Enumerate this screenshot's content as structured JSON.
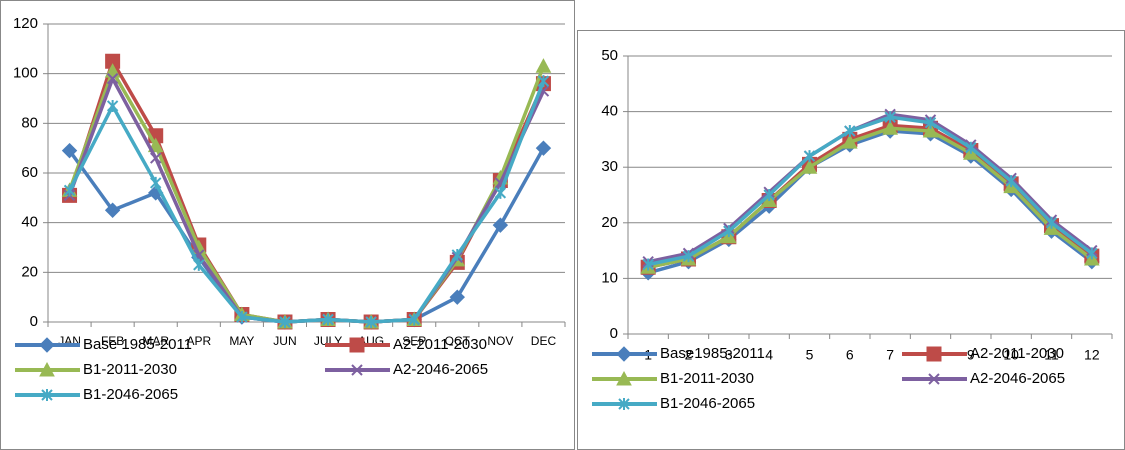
{
  "chart_data": [
    {
      "type": "line",
      "categories": [
        "JAN",
        "FEB",
        "MAR",
        "APR",
        "MAY",
        "JUN",
        "JULY",
        "AUG",
        "SEP",
        "OCT",
        "NOV",
        "DEC"
      ],
      "ylim": [
        0,
        120
      ],
      "yticks": [
        0,
        20,
        40,
        60,
        80,
        100,
        120
      ],
      "grid": true,
      "series": [
        {
          "name": "Base 1985-2011",
          "color": "#4a7ebb",
          "values": [
            69,
            45,
            52,
            26,
            2,
            0,
            1,
            0,
            1,
            10,
            39,
            70
          ]
        },
        {
          "name": "A2-2011-2030",
          "color": "#be4b48",
          "values": [
            51,
            105,
            75,
            31,
            3,
            0,
            1,
            0,
            1,
            24,
            57,
            96
          ]
        },
        {
          "name": "B1-2011-2030",
          "color": "#98b954",
          "values": [
            53,
            101,
            71,
            30,
            3,
            0,
            1,
            0,
            1,
            25,
            58,
            103
          ]
        },
        {
          "name": "A2-2046-2065",
          "color": "#7d60a0",
          "values": [
            51,
            98,
            66,
            27,
            2,
            0,
            1,
            0,
            1,
            26,
            56,
            93
          ]
        },
        {
          "name": "B1-2046-2065",
          "color": "#46aac5",
          "values": [
            53,
            87,
            56,
            23,
            2,
            0,
            1,
            0,
            1,
            27,
            52,
            97
          ]
        }
      ]
    },
    {
      "type": "line",
      "categories": [
        "1",
        "2",
        "3",
        "4",
        "5",
        "6",
        "7",
        "8",
        "9",
        "10",
        "11",
        "12"
      ],
      "ylim": [
        0,
        50
      ],
      "yticks": [
        0,
        10,
        20,
        30,
        40,
        50
      ],
      "grid": true,
      "series": [
        {
          "name": "Base1985-2011",
          "color": "#4a7ebb",
          "values": [
            11,
            13,
            17,
            23,
            30,
            34,
            36.5,
            36,
            32,
            26,
            18.5,
            13
          ]
        },
        {
          "name": "A2-2011-2030",
          "color": "#be4b48",
          "values": [
            12,
            13.5,
            17.5,
            24,
            30.5,
            35,
            37.5,
            37,
            33,
            27,
            19.5,
            14
          ]
        },
        {
          "name": "B1-2011-2030",
          "color": "#98b954",
          "values": [
            12,
            13.5,
            17.5,
            24,
            30,
            34.5,
            37,
            36.5,
            32.5,
            26.5,
            19,
            13.5
          ]
        },
        {
          "name": "A2-2046-2065",
          "color": "#7d60a0",
          "values": [
            13,
            14.5,
            19,
            25.5,
            32,
            36.5,
            39.5,
            38.5,
            34,
            28,
            20.5,
            15
          ]
        },
        {
          "name": "B1-2046-2065",
          "color": "#46aac5",
          "values": [
            12.5,
            14,
            18.5,
            25,
            32,
            36.5,
            39,
            38,
            33.5,
            27.5,
            20,
            14.5
          ]
        }
      ]
    }
  ]
}
